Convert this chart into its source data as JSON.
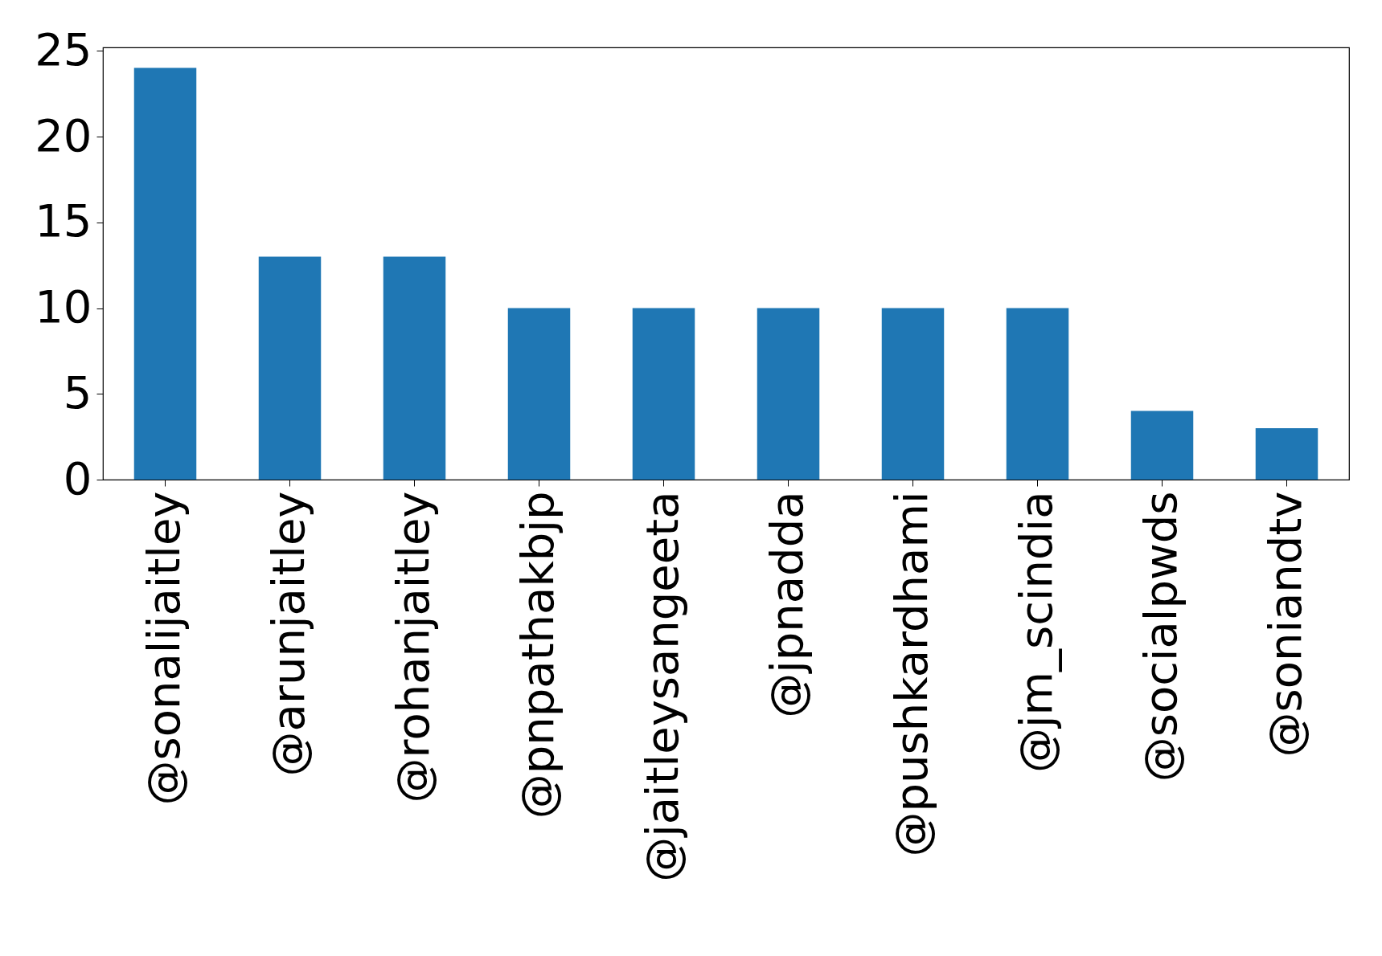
{
  "chart_data": {
    "type": "bar",
    "categories": [
      "@sonalijaitley",
      "@arunjaitley",
      "@rohanjaitley",
      "@pnpathakbjp",
      "@jaitleysangeeta",
      "@jpnadda",
      "@pushkardhami",
      "@jm_scindia",
      "@socialpwds",
      "@soniandtv"
    ],
    "values": [
      24,
      13,
      13,
      10,
      10,
      10,
      10,
      10,
      4,
      3
    ],
    "color": "#1f77b4",
    "ylim": [
      0,
      25.2
    ],
    "yticks": [
      0,
      5,
      10,
      15,
      20,
      25
    ]
  }
}
